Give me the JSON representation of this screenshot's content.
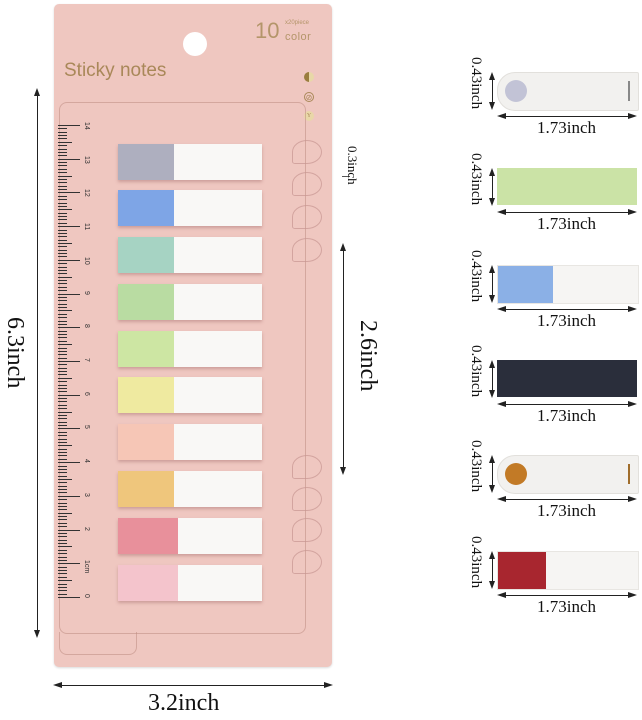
{
  "product": {
    "brand_count": "10",
    "pieces": "x20piece",
    "color_word": "color",
    "title": "Sticky notes",
    "card_color": "#efc7c0",
    "text_color": "#a98859",
    "symbols": [
      "half-circle-icon",
      "recycle-slash-icon",
      "leaf-badge-icon"
    ],
    "symbol_glyphs": [
      "",
      "⊘",
      "Y"
    ]
  },
  "ruler": {
    "labels": [
      "14",
      "13",
      "12",
      "11",
      "10",
      "9",
      "8",
      "7",
      "6",
      "5",
      "4",
      "3",
      "2",
      "1cm",
      "0"
    ]
  },
  "tabs": [
    {
      "color": "#aeafbf"
    },
    {
      "color": "#7ea5e6"
    },
    {
      "color": "#a6d3c3"
    },
    {
      "color": "#b9dca2"
    },
    {
      "color": "#cde6a3"
    },
    {
      "color": "#efeaa0"
    },
    {
      "color": "#f6c6b6"
    },
    {
      "color": "#efc67c"
    },
    {
      "color": "#e8909b"
    },
    {
      "color": "#f4c4cc"
    }
  ],
  "dimensions": {
    "height_label": "6.3inch",
    "width_label": "3.2inch",
    "hook_area_label": "2.6inch",
    "gap_label": "0.3inch"
  },
  "samples": [
    {
      "type": "round-indicator",
      "dot_color": "#c2c3d6",
      "bar_color": "#888888",
      "height_label": "0.43inch",
      "width_label": "1.73inch"
    },
    {
      "type": "full-color",
      "fill": "#cbe3a6",
      "height_label": "0.43inch",
      "width_label": "1.73inch"
    },
    {
      "type": "half-color",
      "fill": "#8bb0e6",
      "height_label": "0.43inch",
      "width_label": "1.73inch"
    },
    {
      "type": "full-color",
      "fill": "#2a2e3b",
      "height_label": "0.43inch",
      "width_label": "1.73inch"
    },
    {
      "type": "round-indicator",
      "dot_color": "#c27a26",
      "bar_color": "#a06d2b",
      "height_label": "0.43inch",
      "width_label": "1.73inch"
    },
    {
      "type": "half-color",
      "fill": "#a8262f",
      "height_label": "0.43inch",
      "width_label": "1.73inch"
    }
  ]
}
